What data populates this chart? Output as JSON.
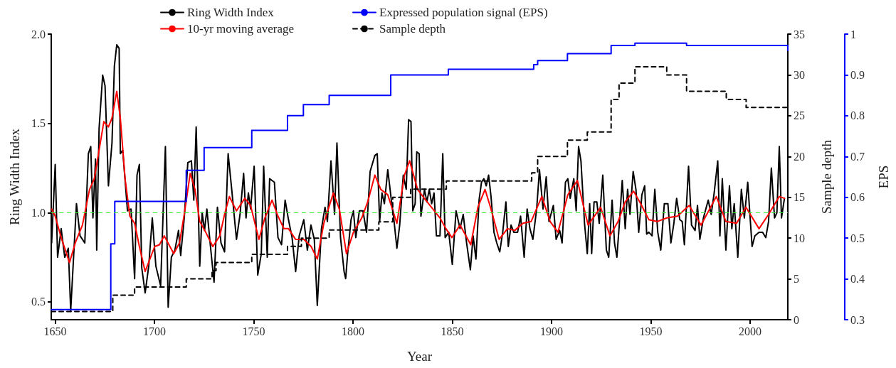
{
  "chart_data": {
    "type": "line",
    "xlabel": "Year",
    "ylabel": "Ring Width Index",
    "y2label": "Sample depth",
    "y3label": "EPS",
    "xlim": [
      1648,
      2019
    ],
    "xticks": [
      1650,
      1700,
      1750,
      1800,
      1850,
      1900,
      1950,
      2000
    ],
    "ylim": [
      0.4,
      2.0
    ],
    "yticks": [
      0.5,
      {
        "value": 1,
        "label": "1.0"
      },
      1.5,
      {
        "value": 2,
        "label": "2.0"
      }
    ],
    "y2lim": [
      0,
      35
    ],
    "y2ticks": [
      0,
      5,
      10,
      15,
      20,
      25,
      30,
      35
    ],
    "y3lim": [
      0.3,
      1
    ],
    "y3ticks": [
      0.3,
      0.4,
      0.5,
      0.6,
      0.7,
      0.8,
      0.9,
      1
    ],
    "grid": false,
    "legend": "top",
    "marker": "none",
    "ref_lines": [
      {
        "axis": "y",
        "value": 1,
        "color": "#33ee33",
        "line_style": "dashed"
      }
    ],
    "series": [
      {
        "name": "Ring Width Index",
        "color": "#000000",
        "line_style": "solid",
        "x": [
          1648.2,
          1650,
          1651.2,
          1653,
          1654.8,
          1656.6,
          1657.8,
          1660.7,
          1662.5,
          1664.9,
          1666.7,
          1667.9,
          1669,
          1670.3,
          1670.9,
          1672.1,
          1673.9,
          1675.1,
          1676.8,
          1678.6,
          1679.8,
          1681,
          1682.2,
          1682.8,
          1684,
          1686.4,
          1688.2,
          1690,
          1691.2,
          1692.4,
          1693.6,
          1695.3,
          1697.1,
          1698.9,
          1700.7,
          1703.1,
          1705.5,
          1706.9,
          1708.5,
          1710.3,
          1712.1,
          1713.2,
          1715,
          1716.8,
          1718.6,
          1719.8,
          1721,
          1722.8,
          1724,
          1725.2,
          1726.4,
          1728.2,
          1730,
          1731.7,
          1733.5,
          1735.3,
          1737.1,
          1738.9,
          1741.3,
          1743.1,
          1744.9,
          1746.1,
          1747.3,
          1748.4,
          1750.2,
          1752,
          1753.8,
          1755,
          1756.8,
          1758,
          1760.4,
          1762.2,
          1764,
          1765.8,
          1767.5,
          1769.3,
          1771.1,
          1772.9,
          1775.2,
          1777,
          1778.8,
          1780.5,
          1782,
          1784.1,
          1785.9,
          1787.1,
          1788.9,
          1790.7,
          1791.9,
          1793.7,
          1795.5,
          1796.3,
          1797.3,
          1799,
          1800.2,
          1801.4,
          1803.2,
          1805,
          1806.8,
          1808.6,
          1811,
          1812.2,
          1813.4,
          1814.6,
          1815.8,
          1817.5,
          1819.3,
          1820.5,
          1822.1,
          1823.5,
          1825.3,
          1826.8,
          1828,
          1829.2,
          1830.1,
          1831.3,
          1832.1,
          1833.3,
          1834.2,
          1836,
          1837.2,
          1838.4,
          1839.6,
          1840.8,
          1842,
          1843.8,
          1845.2,
          1846.4,
          1848.2,
          1850,
          1851.9,
          1853.9,
          1855.5,
          1857.2,
          1859.1,
          1860.5,
          1861.9,
          1863.5,
          1864.7,
          1865.9,
          1867.1,
          1868.3,
          1869.5,
          1871,
          1872.4,
          1873.9,
          1875.4,
          1877,
          1878.2,
          1879.6,
          1881,
          1882.9,
          1884.4,
          1886.2,
          1887.7,
          1889.1,
          1890.6,
          1892.5,
          1893.9,
          1895.7,
          1897.3,
          1898.7,
          1900.9,
          1902.3,
          1904.1,
          1905.3,
          1907,
          1908.2,
          1909.4,
          1911.2,
          1912.4,
          1913.6,
          1914.8,
          1916.6,
          1918,
          1919.2,
          1920.2,
          1921.4,
          1922.8,
          1924,
          1925.8,
          1927.6,
          1928.8,
          1930.5,
          1931.7,
          1932.9,
          1934.1,
          1935.6,
          1937.1,
          1938.3,
          1939.5,
          1941.1,
          1942.5,
          1943.9,
          1945.5,
          1946.9,
          1947.9,
          1949,
          1950.6,
          1952,
          1953.5,
          1955,
          1956.8,
          1958.6,
          1960.1,
          1961.6,
          1963,
          1964.6,
          1965.8,
          1966.9,
          1969,
          1970.5,
          1972.3,
          1973.5,
          1974.7,
          1976.5,
          1978.9,
          1980.4,
          1981.9,
          1983.7,
          1984.8,
          1986,
          1987.8,
          1989.6,
          1990.8,
          1992,
          1993.8,
          1995.6,
          1997.1,
          1998.8,
          2001,
          2002.4,
          2004.5,
          2006.3,
          2007.9,
          2009.3,
          2010.7,
          2012.3,
          2013.5,
          2014.7,
          2015.8,
          2017.3
        ],
        "values": [
          0.83,
          1.27,
          0.75,
          0.91,
          0.75,
          0.8,
          0.45,
          1.05,
          0.87,
          0.83,
          1.33,
          1.37,
          0.97,
          1.3,
          0.79,
          1.47,
          1.77,
          1.71,
          1.15,
          1.39,
          1.82,
          1.94,
          1.92,
          1.33,
          1.35,
          1.01,
          1.02,
          0.63,
          1.21,
          1.27,
          0.69,
          0.55,
          0.7,
          0.97,
          0.7,
          0.59,
          1.37,
          0.47,
          0.75,
          0.79,
          0.9,
          0.76,
          0.97,
          1.28,
          1.29,
          1.07,
          1.48,
          0.7,
          1,
          0.9,
          1.02,
          0.81,
          0.61,
          1.03,
          0.83,
          0.78,
          1.33,
          1.13,
          0.85,
          0.99,
          1.22,
          0.97,
          1.11,
          1.02,
          1.26,
          0.65,
          0.77,
          1.26,
          0.75,
          1.19,
          1.17,
          0.86,
          0.82,
          1.07,
          0.96,
          0.86,
          0.67,
          0.87,
          0.96,
          0.79,
          0.93,
          0.85,
          0.48,
          0.91,
          1.03,
          0.95,
          1.29,
          0.99,
          1.39,
          0.86,
          0.67,
          0.63,
          0.77,
          0.96,
          1.01,
          0.86,
          1.01,
          1.01,
          0.89,
          1.23,
          1.32,
          1.33,
          0.95,
          1.11,
          1.05,
          1.24,
          1.07,
          0.97,
          0.8,
          0.93,
          1.21,
          1.13,
          1.52,
          1.51,
          1.01,
          1.05,
          1.34,
          1.33,
          0.98,
          1.13,
          1.06,
          1.13,
          1.05,
          1.11,
          0.87,
          0.87,
          1.33,
          0.86,
          0.89,
          0.71,
          1.01,
          0.91,
          0.99,
          0.83,
          0.68,
          0.87,
          0.74,
          1.07,
          1.17,
          1.19,
          1.15,
          1.21,
          1.09,
          0.89,
          0.83,
          0.78,
          0.89,
          1.06,
          0.81,
          0.93,
          0.89,
          0.89,
          0.98,
          0.75,
          1.02,
          0.91,
          0.85,
          1.02,
          1.24,
          1.02,
          1.2,
          0.95,
          1.04,
          0.85,
          0.9,
          0.83,
          1.17,
          1.19,
          1.08,
          1.19,
          1.01,
          1.37,
          1.29,
          0.94,
          0.77,
          1.05,
          0.77,
          1.06,
          1.06,
          0.94,
          1.21,
          0.79,
          0.75,
          1.07,
          0.83,
          0.75,
          0.93,
          1.18,
          0.91,
          1.13,
          0.99,
          1.23,
          1.13,
          0.89,
          1.1,
          1.15,
          0.88,
          0.89,
          0.87,
          1.13,
          0.89,
          0.79,
          1.05,
          1.05,
          0.83,
          0.94,
          1.08,
          0.96,
          0.95,
          0.82,
          1.26,
          0.93,
          0.9,
          1.04,
          0.85,
          0.97,
          1.07,
          0.99,
          1.11,
          1.29,
          0.87,
          1.19,
          0.79,
          1.15,
          0.91,
          1.05,
          0.75,
          1.13,
          0.97,
          1.17,
          0.81,
          0.87,
          0.89,
          0.89,
          0.86,
          0.95,
          1.25,
          0.97,
          1,
          1.37,
          0.97,
          1.08
        ]
      },
      {
        "name": "10-yr moving average",
        "color": "#ff0000",
        "line_style": "solid",
        "x": [
          1648.2,
          1650,
          1653,
          1657.2,
          1660.1,
          1663.7,
          1667.3,
          1669.7,
          1672.1,
          1674.5,
          1676.8,
          1678.6,
          1681,
          1682.8,
          1685.2,
          1687.6,
          1690,
          1692.4,
          1695.3,
          1697.7,
          1700.1,
          1702.5,
          1704.9,
          1707.3,
          1709.7,
          1712.6,
          1715,
          1718,
          1720.4,
          1722.8,
          1725.8,
          1729.4,
          1732.9,
          1735.3,
          1737.7,
          1741.3,
          1745.5,
          1748.4,
          1752.6,
          1755.6,
          1759.2,
          1762.2,
          1765.2,
          1767.5,
          1771.1,
          1775.3,
          1778.9,
          1782,
          1785.3,
          1790.1,
          1793.1,
          1796.7,
          1800.2,
          1804.4,
          1807.4,
          1811,
          1814,
          1817.5,
          1822.1,
          1825.9,
          1828.5,
          1832.5,
          1836.6,
          1840.2,
          1843.8,
          1846.8,
          1849.8,
          1853.9,
          1859.3,
          1862.9,
          1866.5,
          1869.5,
          1873.6,
          1877.8,
          1881.4,
          1885.6,
          1889.7,
          1895.1,
          1899.3,
          1903.2,
          1908.2,
          1913,
          1918.4,
          1924.7,
          1929.4,
          1933.5,
          1937.1,
          1941.3,
          1944.9,
          1949,
          1953.2,
          1958,
          1963.4,
          1969.3,
          1975.3,
          1983,
          1987.8,
          1993.2,
          1997.9,
          2004.5,
          2009.3,
          2014.7,
          2017.3
        ],
        "values": [
          1.02,
          0.98,
          0.86,
          0.72,
          0.83,
          0.93,
          1.13,
          1.19,
          1.35,
          1.51,
          1.48,
          1.53,
          1.68,
          1.53,
          1.19,
          0.98,
          0.94,
          0.81,
          0.67,
          0.74,
          0.81,
          0.82,
          0.87,
          0.82,
          0.77,
          0.83,
          0.99,
          1.22,
          1.13,
          0.95,
          0.89,
          0.81,
          0.87,
          0.99,
          1.09,
          1.01,
          1.08,
          1.04,
          0.85,
          0.97,
          1.07,
          0.98,
          0.91,
          0.91,
          0.85,
          0.85,
          0.81,
          0.74,
          0.94,
          1.11,
          1.02,
          0.77,
          0.89,
          0.97,
          1.06,
          1.21,
          1.13,
          1.1,
          0.94,
          1.21,
          1.29,
          1.13,
          1.07,
          1.02,
          0.97,
          0.91,
          0.86,
          0.93,
          0.82,
          1.03,
          1.13,
          1.02,
          0.85,
          0.91,
          0.9,
          0.94,
          0.95,
          1.09,
          0.95,
          0.89,
          1.1,
          1.18,
          0.93,
          1.03,
          0.87,
          0.95,
          1.06,
          1.12,
          1.05,
          0.96,
          0.95,
          0.97,
          0.98,
          1.04,
          0.93,
          1.09,
          0.95,
          0.94,
          1.03,
          0.91,
          0.99,
          1.09,
          1.08
        ]
      },
      {
        "name": "Expressed population signal (EPS)",
        "color": "#0000ff",
        "type": "step",
        "axis": "y3",
        "line_style": "solid",
        "x": [
          1648,
          1678,
          1680,
          1716,
          1725,
          1749,
          1767,
          1775,
          1788,
          1819,
          1848,
          1891,
          1893,
          1908,
          1930,
          1942,
          1968,
          2017,
          2019
        ],
        "values": [
          0.325,
          0.486,
          0.59,
          0.666,
          0.722,
          0.764,
          0.8,
          0.827,
          0.85,
          0.9,
          0.914,
          0.925,
          0.935,
          0.952,
          0.972,
          0.978,
          0.972,
          0.972,
          0.96
        ]
      },
      {
        "name": "Sample depth",
        "color": "#000000",
        "type": "step",
        "axis": "y2",
        "line_style": "dashed",
        "x": [
          1648,
          1679,
          1690,
          1716,
          1729,
          1731,
          1749,
          1767,
          1774,
          1788,
          1813,
          1820,
          1829,
          1847,
          1890,
          1893,
          1908,
          1918,
          1929,
          1930,
          1934,
          1942,
          1958,
          1968,
          1988,
          1998,
          2019
        ],
        "values": [
          1,
          3,
          4,
          5,
          6,
          7,
          8,
          9,
          10,
          11,
          12,
          15,
          16,
          17,
          18,
          20,
          22,
          23,
          23,
          27,
          29,
          31,
          30,
          28,
          27,
          26,
          26
        ]
      }
    ]
  }
}
